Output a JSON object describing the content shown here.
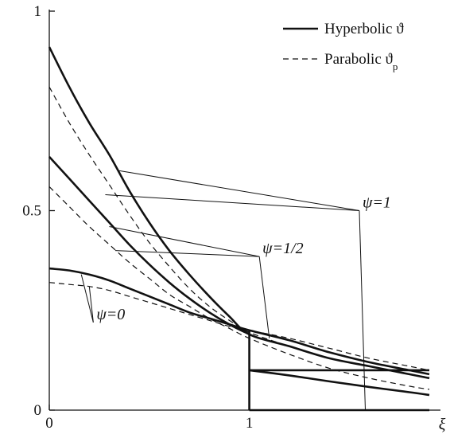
{
  "chart_data": {
    "type": "line",
    "title": "",
    "xlabel": "ξ",
    "ylabel": "",
    "xlim": [
      0,
      1.9
    ],
    "ylim": [
      0,
      1
    ],
    "x_ticks": [
      {
        "value": 0,
        "label": "0"
      },
      {
        "value": 1,
        "label": "1"
      }
    ],
    "y_ticks": [
      {
        "value": 0,
        "label": "0"
      },
      {
        "value": 0.5,
        "label": "0.5"
      },
      {
        "value": 1,
        "label": "1"
      }
    ],
    "grid": false,
    "legend": {
      "placement": "top-right",
      "entries": [
        {
          "key": "hyperbolic",
          "style": "solid",
          "label": "Hyperbolic ϑ"
        },
        {
          "key": "parabolic",
          "style": "dashed",
          "label": "Parabolic ϑ",
          "subscript": "p"
        }
      ]
    },
    "series": [
      {
        "psi": "1",
        "style": "solid",
        "points": [
          [
            0,
            0.91
          ],
          [
            0.1,
            0.81
          ],
          [
            0.2,
            0.72
          ],
          [
            0.3,
            0.64
          ],
          [
            0.4,
            0.55
          ],
          [
            0.5,
            0.47
          ],
          [
            0.6,
            0.4
          ],
          [
            0.7,
            0.34
          ],
          [
            0.8,
            0.285
          ],
          [
            0.9,
            0.235
          ],
          [
            1.0,
            0.19
          ],
          [
            1.2,
            0.16
          ],
          [
            1.4,
            0.13
          ],
          [
            1.6,
            0.11
          ],
          [
            1.8,
            0.09
          ],
          [
            1.9,
            0.08
          ]
        ]
      },
      {
        "psi": "1",
        "style": "dashed",
        "points": [
          [
            0,
            0.81
          ],
          [
            0.1,
            0.72
          ],
          [
            0.2,
            0.64
          ],
          [
            0.3,
            0.565
          ],
          [
            0.4,
            0.49
          ],
          [
            0.5,
            0.42
          ],
          [
            0.6,
            0.36
          ],
          [
            0.7,
            0.305
          ],
          [
            0.8,
            0.26
          ],
          [
            0.9,
            0.225
          ],
          [
            1.0,
            0.195
          ],
          [
            1.2,
            0.16
          ],
          [
            1.4,
            0.13
          ],
          [
            1.6,
            0.11
          ],
          [
            1.8,
            0.09
          ],
          [
            1.9,
            0.082
          ]
        ]
      },
      {
        "psi": "1/2",
        "style": "solid",
        "points": [
          [
            0,
            0.635
          ],
          [
            0.1,
            0.58
          ],
          [
            0.2,
            0.525
          ],
          [
            0.3,
            0.47
          ],
          [
            0.4,
            0.415
          ],
          [
            0.5,
            0.365
          ],
          [
            0.6,
            0.32
          ],
          [
            0.7,
            0.28
          ],
          [
            0.8,
            0.245
          ],
          [
            0.9,
            0.215
          ],
          [
            1.0,
            0.19
          ],
          [
            1.0,
            0.1
          ],
          [
            1.2,
            0.087
          ],
          [
            1.4,
            0.072
          ],
          [
            1.6,
            0.058
          ],
          [
            1.8,
            0.045
          ],
          [
            1.9,
            0.038
          ]
        ]
      },
      {
        "psi": "1/2",
        "style": "dashed",
        "points": [
          [
            0,
            0.56
          ],
          [
            0.1,
            0.51
          ],
          [
            0.2,
            0.46
          ],
          [
            0.3,
            0.415
          ],
          [
            0.4,
            0.37
          ],
          [
            0.5,
            0.33
          ],
          [
            0.6,
            0.29
          ],
          [
            0.7,
            0.26
          ],
          [
            0.8,
            0.23
          ],
          [
            0.9,
            0.205
          ],
          [
            1.0,
            0.18
          ],
          [
            1.2,
            0.14
          ],
          [
            1.4,
            0.105
          ],
          [
            1.6,
            0.08
          ],
          [
            1.8,
            0.06
          ],
          [
            1.9,
            0.052
          ]
        ]
      },
      {
        "psi": "0",
        "style": "solid",
        "points": [
          [
            0,
            0.355
          ],
          [
            0.1,
            0.35
          ],
          [
            0.2,
            0.34
          ],
          [
            0.3,
            0.325
          ],
          [
            0.4,
            0.305
          ],
          [
            0.5,
            0.285
          ],
          [
            0.6,
            0.265
          ],
          [
            0.7,
            0.245
          ],
          [
            0.8,
            0.23
          ],
          [
            0.9,
            0.215
          ],
          [
            1.0,
            0.2
          ],
          [
            1.2,
            0.175
          ],
          [
            1.4,
            0.145
          ],
          [
            1.6,
            0.12
          ],
          [
            1.8,
            0.1
          ],
          [
            1.9,
            0.09
          ]
        ]
      },
      {
        "psi": "0",
        "style": "dashed",
        "points": [
          [
            0,
            0.32
          ],
          [
            0.1,
            0.315
          ],
          [
            0.2,
            0.31
          ],
          [
            0.3,
            0.3
          ],
          [
            0.4,
            0.285
          ],
          [
            0.5,
            0.27
          ],
          [
            0.6,
            0.255
          ],
          [
            0.7,
            0.24
          ],
          [
            0.8,
            0.225
          ],
          [
            0.9,
            0.21
          ],
          [
            1.0,
            0.2
          ],
          [
            1.2,
            0.18
          ],
          [
            1.4,
            0.155
          ],
          [
            1.6,
            0.13
          ],
          [
            1.8,
            0.11
          ],
          [
            1.9,
            0.1
          ]
        ]
      },
      {
        "psi": "0",
        "style": "solid",
        "points": [
          [
            1.0,
            0
          ],
          [
            1.9,
            0
          ]
        ]
      }
    ],
    "fronts": [
      {
        "style": "solid",
        "points": [
          [
            1.0,
            0.2
          ],
          [
            1.0,
            0
          ]
        ]
      },
      {
        "style": "solid",
        "points": [
          [
            1.0,
            0.1
          ],
          [
            1.9,
            0.1
          ]
        ]
      }
    ],
    "annotations": [
      {
        "text": "ψ=1",
        "label_at": [
          1.55,
          0.5
        ],
        "leaders_to": [
          [
            0.35,
            0.6
          ],
          [
            0.28,
            0.54
          ],
          [
            1.58,
            0.0
          ]
        ]
      },
      {
        "text": "ψ=1/2",
        "label_at": [
          1.05,
          0.385
        ],
        "leaders_to": [
          [
            0.3,
            0.46
          ],
          [
            0.33,
            0.4
          ],
          [
            1.1,
            0.18
          ]
        ]
      },
      {
        "text": "ψ=0",
        "label_at": [
          0.22,
          0.22
        ],
        "leaders_to": [
          [
            0.16,
            0.34
          ],
          [
            0.2,
            0.31
          ]
        ]
      }
    ]
  }
}
